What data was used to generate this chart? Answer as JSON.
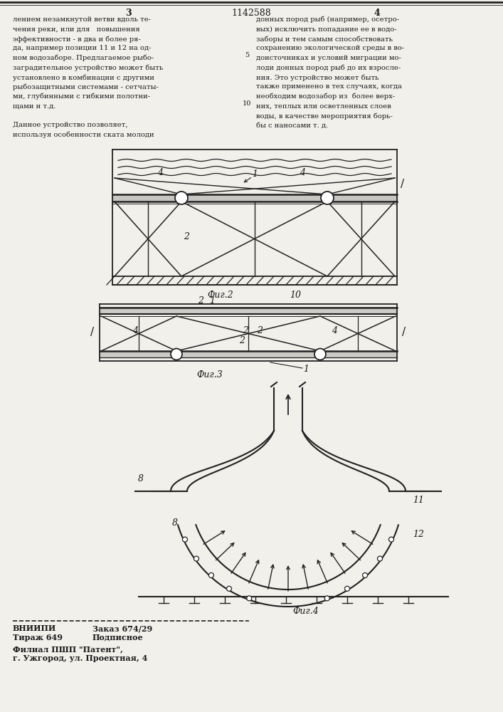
{
  "page_color": "#f2f0eb",
  "text_color": "#1a1a1a",
  "line_color": "#222222",
  "title_number": "1142588",
  "page_left": "3",
  "page_right": "4",
  "left_column_text": [
    "лением незамкнутой ветви вдоль те-",
    "чения реки, или для   повышения",
    "эффективности - в два и более ря-",
    "да, например позиции 11 и 12 на од-",
    "ном водозаборе. Предлагаемое рыбо-",
    "заградительное устройство может быть",
    "установлено в комбинации с другими",
    "рыбозащитными системами - сетчаты-",
    "ми, глубинными с гибкими полотни-",
    "щами и т.д.",
    "",
    "Данное устройство позволяет,",
    "используя особенности ската молоди"
  ],
  "right_column_text": [
    "донных пород рыб (например, осетро-",
    "вых) исключить попадание ее в водо-",
    "заборы и тем самым способствовать",
    "сохранению экологической среды в во-",
    "доисточниках и условий миграции мо-",
    "лоди донных пород рыб до их взросле-",
    "ния. Это устройство может быть",
    "также применено в тех случаях, когда",
    "необходим водозабор из  более верх-",
    "них, теплых или осветленных слоев",
    "воды, в качестве мероприятия борь-",
    "бы с наносами т. д."
  ],
  "fig2_caption": "Фиг.2",
  "fig2_number": "10",
  "fig3_caption": "Фиг.3",
  "fig4_caption": "Фиг.4",
  "footer_left1": "ВНИИПИ",
  "footer_left2": "Тираж 649",
  "footer_right1": "Заказ 674/29",
  "footer_right2": "Подписное",
  "footer_addr1": "Филиал ПШП \"Патент\",",
  "footer_addr2": "г. Ужгород, ул. Проектная, 4"
}
